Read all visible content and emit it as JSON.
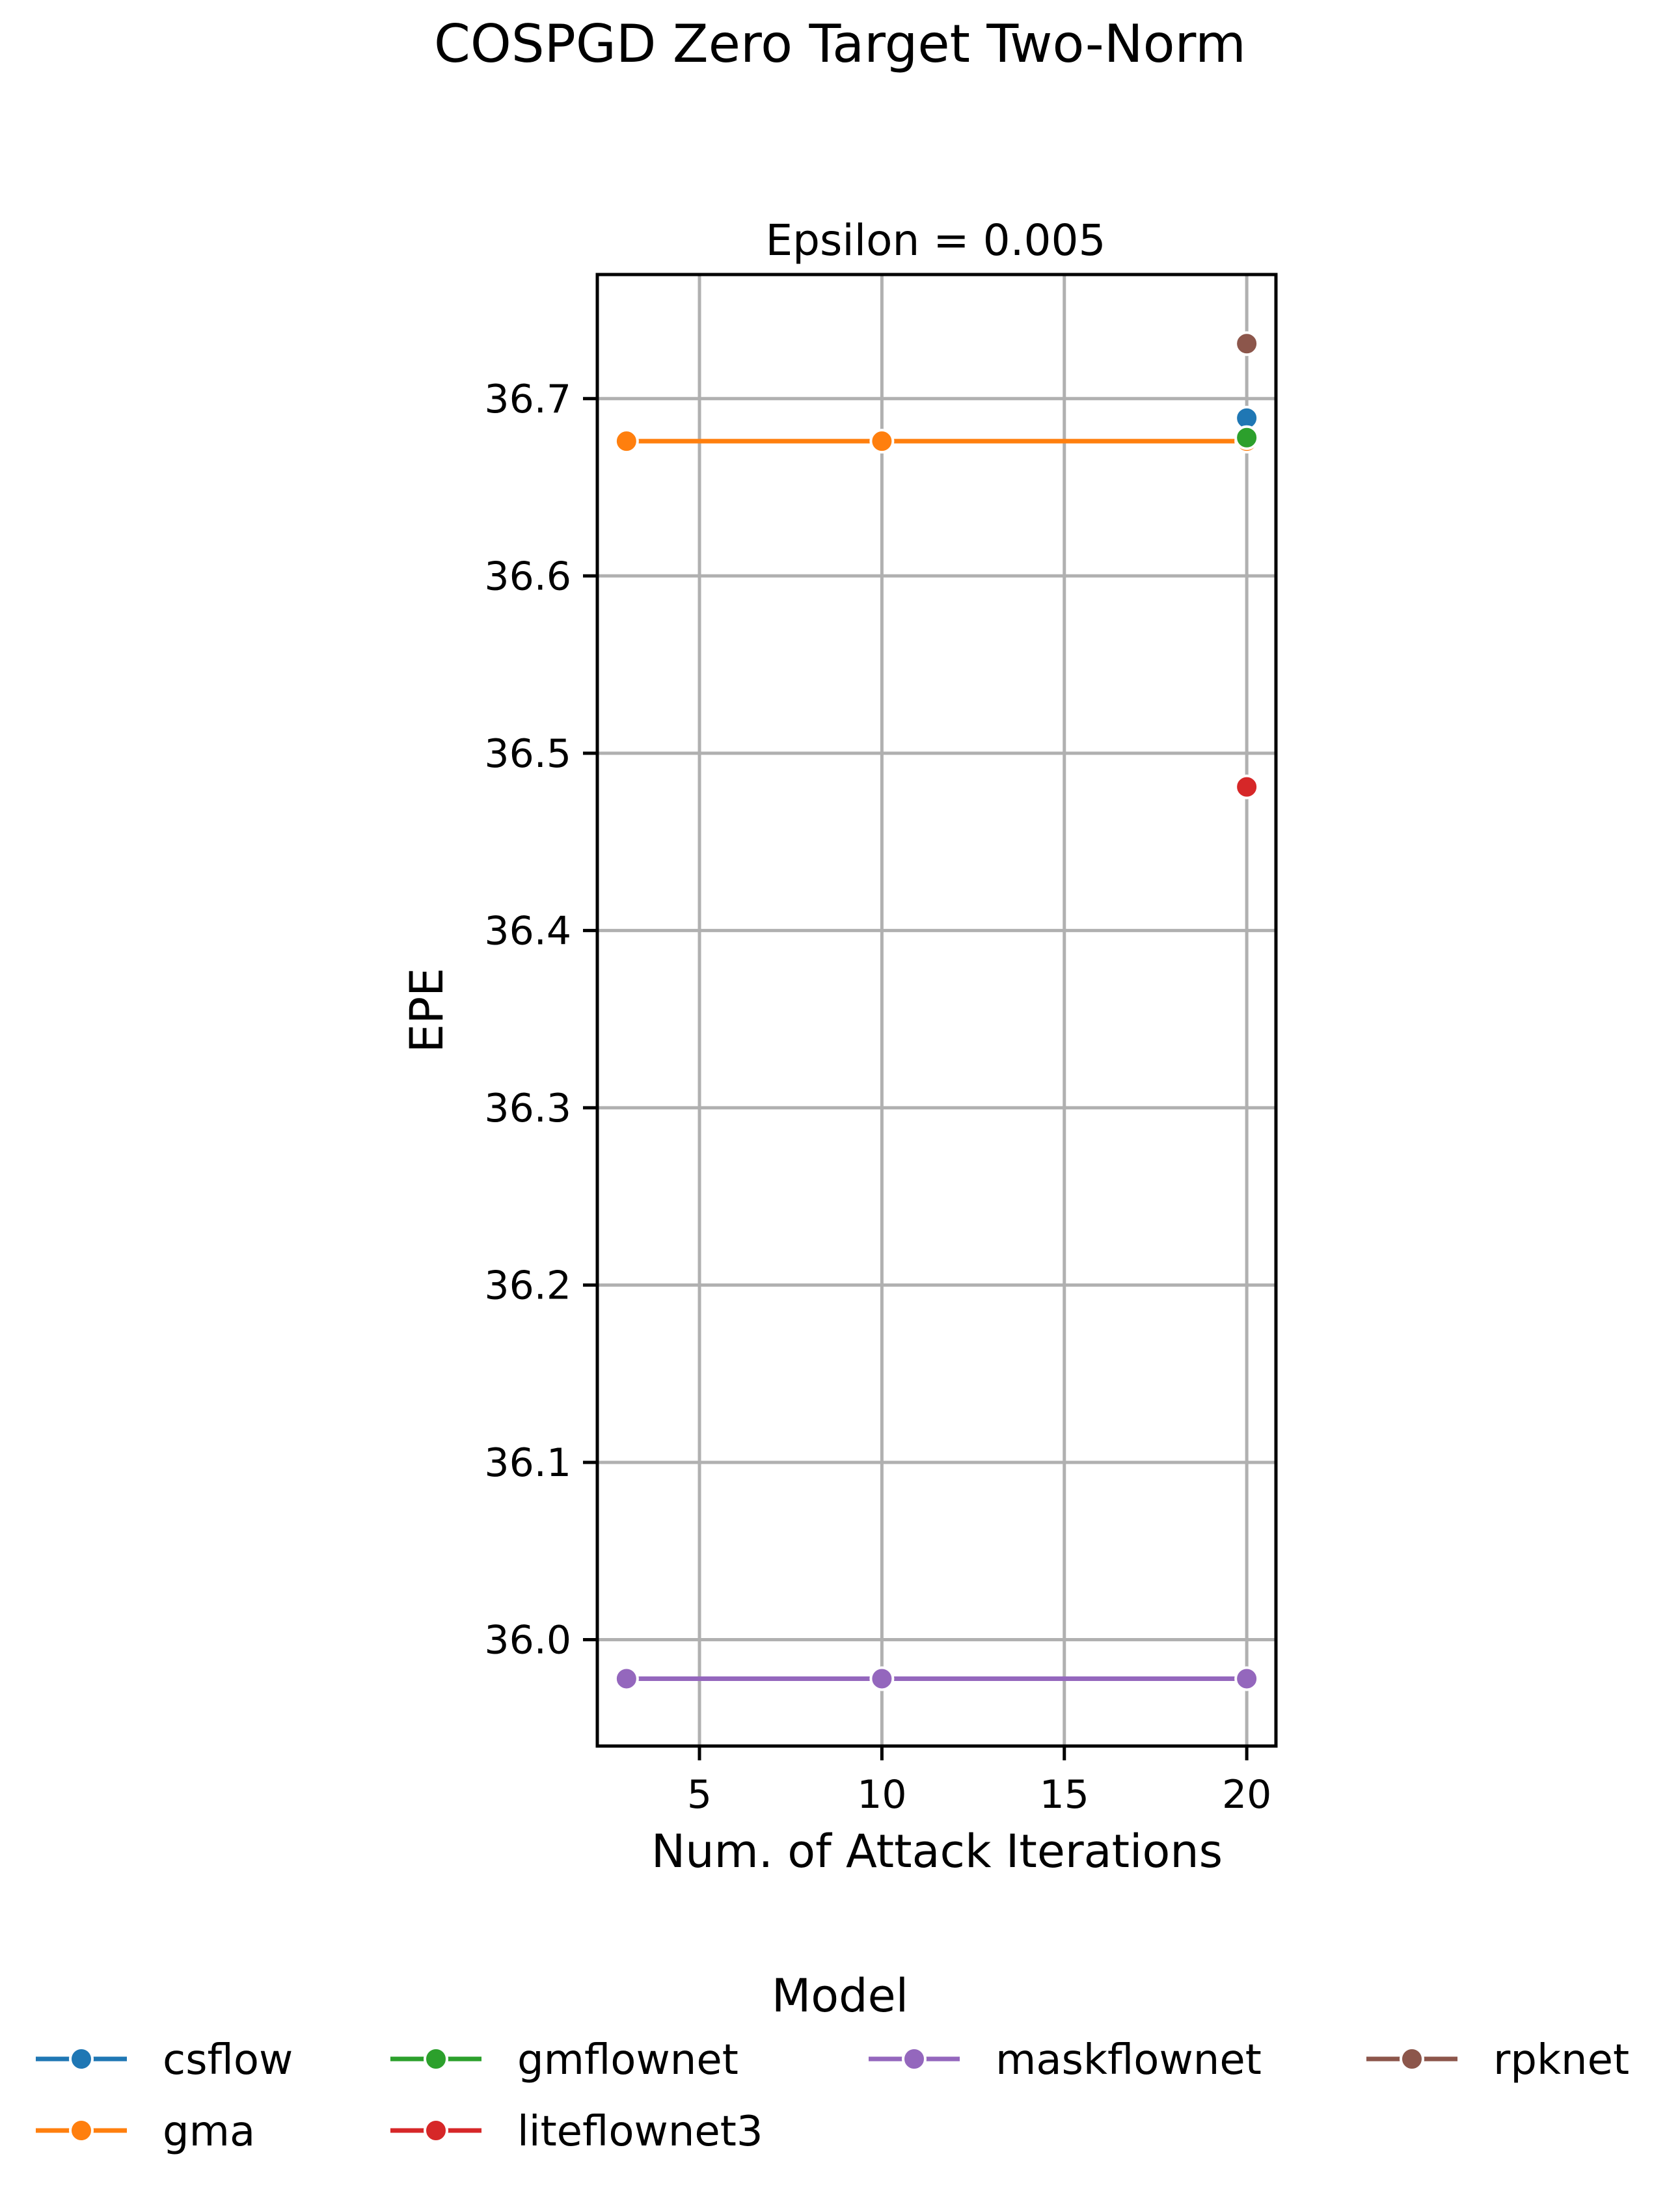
{
  "chart_data": {
    "type": "line",
    "title": "COSPGD Zero Target Two-Norm",
    "subtitle": "Epsilon = 0.005",
    "xlabel": "Num. of Attack Iterations",
    "ylabel": "EPE",
    "xlim": [
      2.2,
      20.8
    ],
    "ylim": [
      35.94,
      36.77
    ],
    "xticks": [
      5,
      10,
      15,
      20
    ],
    "yticks": [
      36.0,
      36.1,
      36.2,
      36.3,
      36.4,
      36.5,
      36.6,
      36.7
    ],
    "xtick_labels": [
      "5",
      "10",
      "15",
      "20"
    ],
    "ytick_labels": [
      "36.0",
      "36.1",
      "36.2",
      "36.3",
      "36.4",
      "36.5",
      "36.6",
      "36.7"
    ],
    "grid": true,
    "legend": {
      "title": "Model",
      "placement": "bottom-center",
      "columns": 4
    },
    "series": [
      {
        "name": "csflow",
        "color": "#1f77b4",
        "x": [
          20
        ],
        "y": [
          36.689
        ]
      },
      {
        "name": "gma",
        "color": "#ff7f0e",
        "x": [
          3,
          10,
          20
        ],
        "y": [
          36.676,
          36.676,
          36.676
        ]
      },
      {
        "name": "gmflownet",
        "color": "#2ca02c",
        "x": [
          20
        ],
        "y": [
          36.678
        ]
      },
      {
        "name": "liteflownet3",
        "color": "#d62728",
        "x": [
          20
        ],
        "y": [
          36.481
        ]
      },
      {
        "name": "maskflownet",
        "color": "#9467bd",
        "x": [
          3,
          10,
          20
        ],
        "y": [
          35.978,
          35.978,
          35.978
        ]
      },
      {
        "name": "rpknet",
        "color": "#8c564b",
        "x": [
          20
        ],
        "y": [
          36.731
        ]
      }
    ],
    "legend_order": [
      "csflow",
      "gmflownet",
      "maskflownet",
      "rpknet",
      "gma",
      "liteflownet3"
    ]
  }
}
